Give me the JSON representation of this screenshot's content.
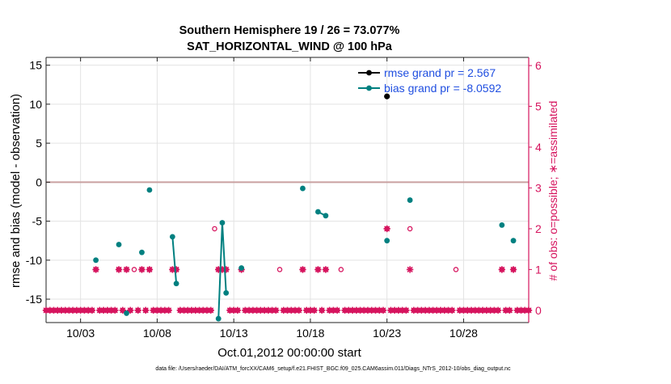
{
  "chart_data": {
    "type": "scatter",
    "title": [
      "Southern Hemisphere 19 / 26 = 73.077%",
      "SAT_HORIZONTAL_WIND @ 100 hPa"
    ],
    "xlabel": "Oct.01,2012 00:00:00 start",
    "ylabel": "rmse and bias (model - observation)",
    "ylabel_right": "# of obs: o=possible; ∗=assimilated",
    "footer": "data file: /Users/raeder/DAI/ATM_forcXX/CAM6_setup/f.e21.FHIST_BGC.f09_025.CAM6assim.011/Diags_NTrS_2012-10/obs_diag_output.nc",
    "xlim": [
      1,
      32.5
    ],
    "ylim": [
      -18,
      16
    ],
    "ylim_right": [
      -0.3,
      6.2
    ],
    "x_ticks": [
      3.25,
      8.25,
      13.25,
      18.25,
      23.25,
      28.25
    ],
    "x_tick_labels": [
      "10/03",
      "10/08",
      "10/13",
      "10/18",
      "10/23",
      "10/28"
    ],
    "y_ticks": [
      -15,
      -10,
      -5,
      0,
      5,
      10,
      15
    ],
    "y_ticks_right": [
      0,
      1,
      2,
      3,
      4,
      5,
      6
    ],
    "legend": {
      "position": "top-right",
      "entries": [
        "rmse grand pr = 2.567",
        "bias grand pr = -8.0592"
      ]
    },
    "colors": {
      "rmse": "#000000",
      "bias": "#008080",
      "obs_count": "#d6145e",
      "zero_line": "#c9a0a0",
      "grid": "#e3e3e3",
      "legend_text": "#1f4ee0"
    },
    "series": [
      {
        "name": "rmse grand pr = 2.567",
        "points": [
          [
            23.25,
            11.0
          ]
        ]
      },
      {
        "name": "bias grand pr = -8.0592",
        "segments": [
          [
            [
              4.25,
              -10.0
            ]
          ],
          [
            [
              5.75,
              -8.0
            ]
          ],
          [
            [
              6.25,
              -16.8
            ]
          ],
          [
            [
              7.25,
              -9.0
            ]
          ],
          [
            [
              7.75,
              -1.0
            ]
          ],
          [
            [
              9.25,
              -7.0
            ],
            [
              9.5,
              -13.0
            ]
          ],
          [
            [
              12.25,
              -17.5
            ],
            [
              12.5,
              -5.2
            ],
            [
              12.75,
              -14.2
            ]
          ],
          [
            [
              13.75,
              -11.0
            ]
          ],
          [
            [
              17.75,
              -0.8
            ]
          ],
          [
            [
              18.75,
              -3.8
            ],
            [
              19.25,
              -4.3
            ]
          ],
          [
            [
              23.25,
              -7.5
            ]
          ],
          [
            [
              24.75,
              -2.3
            ]
          ],
          [
            [
              30.75,
              -5.5
            ]
          ],
          [
            [
              31.5,
              -7.5
            ]
          ]
        ]
      }
    ],
    "possible_obs": {
      "x": [
        4.25,
        5.75,
        6.25,
        6.75,
        7.25,
        7.75,
        9.25,
        9.5,
        12.0,
        12.25,
        12.5,
        12.75,
        13.75,
        16.25,
        17.75,
        18.75,
        19.25,
        20.25,
        23.25,
        24.75,
        27.75,
        30.75,
        31.5
      ],
      "y": [
        1,
        1,
        1,
        1,
        1,
        1,
        1,
        1,
        2,
        1,
        1,
        1,
        1,
        1,
        1,
        1,
        1,
        1,
        2,
        2,
        1,
        1,
        1
      ]
    },
    "assimilated_obs": {
      "x": [
        4.25,
        5.75,
        6.25,
        7.25,
        7.75,
        9.25,
        9.5,
        12.25,
        12.5,
        12.75,
        13.75,
        17.75,
        18.75,
        19.25,
        23.25,
        24.75,
        30.75,
        31.5
      ],
      "y": [
        1,
        1,
        1,
        1,
        1,
        1,
        1,
        1,
        1,
        1,
        1,
        1,
        1,
        1,
        2,
        1,
        1,
        1
      ]
    },
    "zero_count_x_range": [
      1.0,
      32.5,
      0.25
    ]
  }
}
